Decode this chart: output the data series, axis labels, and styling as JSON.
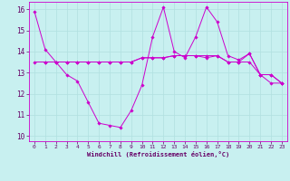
{
  "xlabel": "Windchill (Refroidissement éolien,°C)",
  "background_color": "#c8f0f0",
  "grid_color": "#b0e0e0",
  "line_color": "#cc00cc",
  "spine_color": "#cc00cc",
  "tick_color": "#660066",
  "xlim": [
    -0.5,
    23.5
  ],
  "ylim": [
    9.75,
    16.35
  ],
  "yticks": [
    10,
    11,
    12,
    13,
    14,
    15,
    16
  ],
  "xticks": [
    0,
    1,
    2,
    3,
    4,
    5,
    6,
    7,
    8,
    9,
    10,
    11,
    12,
    13,
    14,
    15,
    16,
    17,
    18,
    19,
    20,
    21,
    22,
    23
  ],
  "line1_x": [
    0,
    1,
    2,
    3,
    4,
    5,
    6,
    7,
    8,
    9,
    10,
    11,
    12,
    13,
    14,
    15,
    16,
    17,
    18,
    19,
    20,
    21,
    22,
    23
  ],
  "line1_y": [
    15.9,
    14.1,
    13.5,
    12.9,
    12.6,
    11.6,
    10.6,
    10.5,
    10.4,
    11.2,
    12.4,
    14.7,
    16.1,
    14.0,
    13.7,
    14.7,
    16.1,
    15.4,
    13.8,
    13.6,
    13.9,
    12.9,
    12.9,
    12.5
  ],
  "line2_x": [
    0,
    1,
    2,
    3,
    4,
    5,
    6,
    7,
    8,
    9,
    10,
    11,
    12,
    13,
    14,
    15,
    16,
    17,
    18,
    19,
    20,
    21,
    22,
    23
  ],
  "line2_y": [
    13.5,
    13.5,
    13.5,
    13.5,
    13.5,
    13.5,
    13.5,
    13.5,
    13.5,
    13.5,
    13.7,
    13.7,
    13.7,
    13.8,
    13.8,
    13.8,
    13.8,
    13.8,
    13.5,
    13.5,
    13.9,
    12.9,
    12.9,
    12.5
  ],
  "line3_x": [
    1,
    2,
    3,
    4,
    5,
    6,
    7,
    8,
    9,
    10,
    11,
    12,
    13,
    14,
    15,
    16,
    17,
    18,
    19,
    20,
    21,
    22,
    23
  ],
  "line3_y": [
    13.5,
    13.5,
    13.5,
    13.5,
    13.5,
    13.5,
    13.5,
    13.5,
    13.5,
    13.7,
    13.7,
    13.7,
    13.8,
    13.8,
    13.8,
    13.7,
    13.8,
    13.5,
    13.5,
    13.5,
    12.9,
    12.5,
    12.5
  ]
}
